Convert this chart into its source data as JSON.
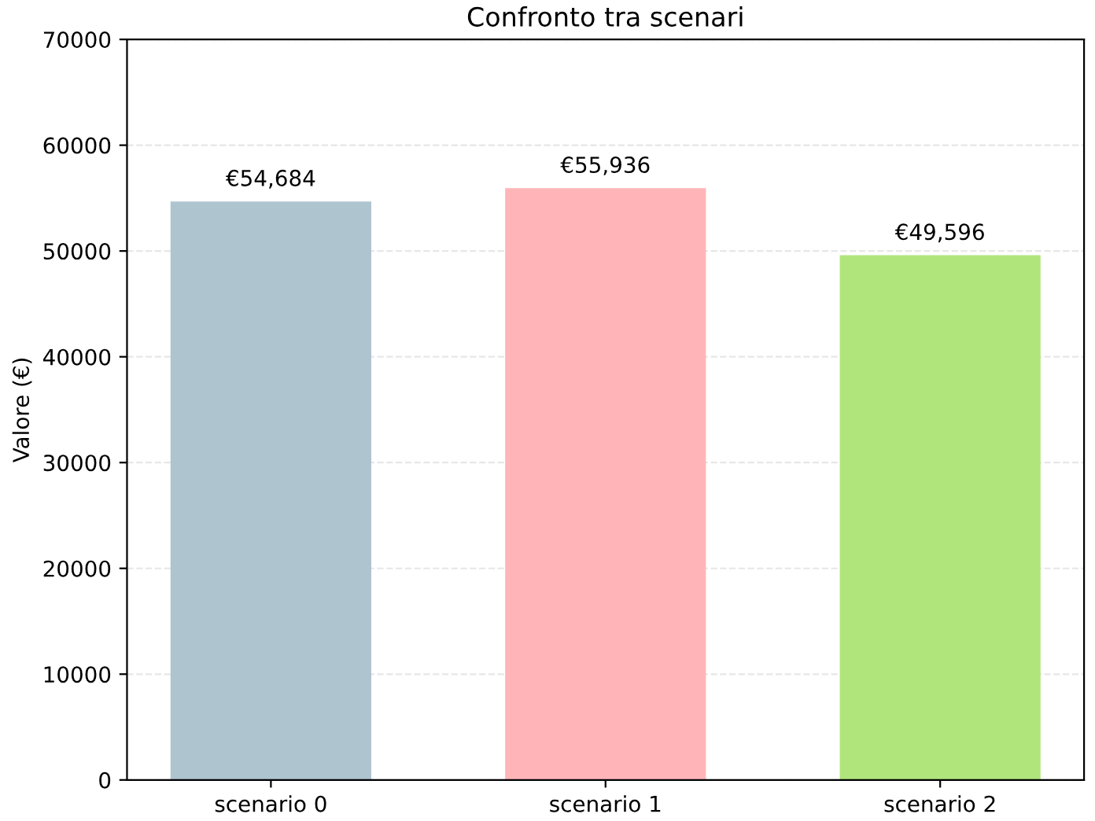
{
  "chart_data": {
    "type": "bar",
    "title": "Confronto tra scenari",
    "ylabel": "Valore (€)",
    "categories": [
      "scenario 0",
      "scenario 1",
      "scenario 2"
    ],
    "values": [
      54684,
      55936,
      49596
    ],
    "value_labels": [
      "€54,684",
      "€55,936",
      "€49,596"
    ],
    "colors": [
      "#aec4cf",
      "#ffb5b8",
      "#b0e57c"
    ],
    "ylim": [
      0,
      70000
    ],
    "yticks": [
      0,
      10000,
      20000,
      30000,
      40000,
      50000,
      60000,
      70000
    ],
    "grid": "y"
  }
}
